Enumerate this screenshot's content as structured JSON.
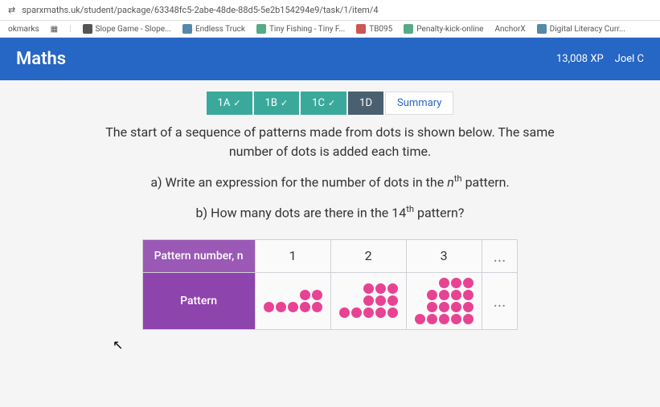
{
  "url": "sparxmaths.uk/student/package/63348fc5-2abe-48de-88d5-5e2b154294e9/task/1/item/4",
  "bookmarks": {
    "label": "okmarks",
    "items": [
      "Slope Game - Slope...",
      "Endless Truck",
      "Tiny Fishing - Tiny F...",
      "TB095",
      "Penalty-kick-online",
      "AnchorX",
      "Digital Literacy Curr..."
    ]
  },
  "app": {
    "title": "Maths",
    "xp": "13,008 XP",
    "user": "Joel C"
  },
  "tabs": {
    "a": "1A",
    "b": "1B",
    "c": "1C",
    "d": "1D",
    "summary": "Summary",
    "check": "✓"
  },
  "problem": {
    "intro1": "The start of a sequence of patterns made from dots is shown below. The same",
    "intro2": "number of dots is added each time.",
    "qa_prefix": "a) Write an expression for the number of dots in the ",
    "qa_var_html": "n<sup>th</sup>",
    "qa_suffix": " pattern.",
    "qb_prefix": "b) How many dots are there in the ",
    "qb_var_html": "14<sup>th</sup>",
    "qb_suffix": " pattern?"
  },
  "table": {
    "header": "Pattern number, n",
    "row_label": "Pattern",
    "cols": [
      "1",
      "2",
      "3"
    ],
    "ellipsis": "...",
    "patterns": {
      "p1": {
        "stack_rows": 2,
        "stack_cols": 2,
        "bottom_extra": 3
      },
      "p2": {
        "stack_rows": 2,
        "stack_cols": 3,
        "bottom_extra": 3,
        "bottom_cols": 4
      },
      "p3": {
        "stack_rows": 3,
        "stack_cols": 4,
        "bottom_extra": 0,
        "bottom_cols": 5
      }
    },
    "dot_color": "#e84393"
  }
}
